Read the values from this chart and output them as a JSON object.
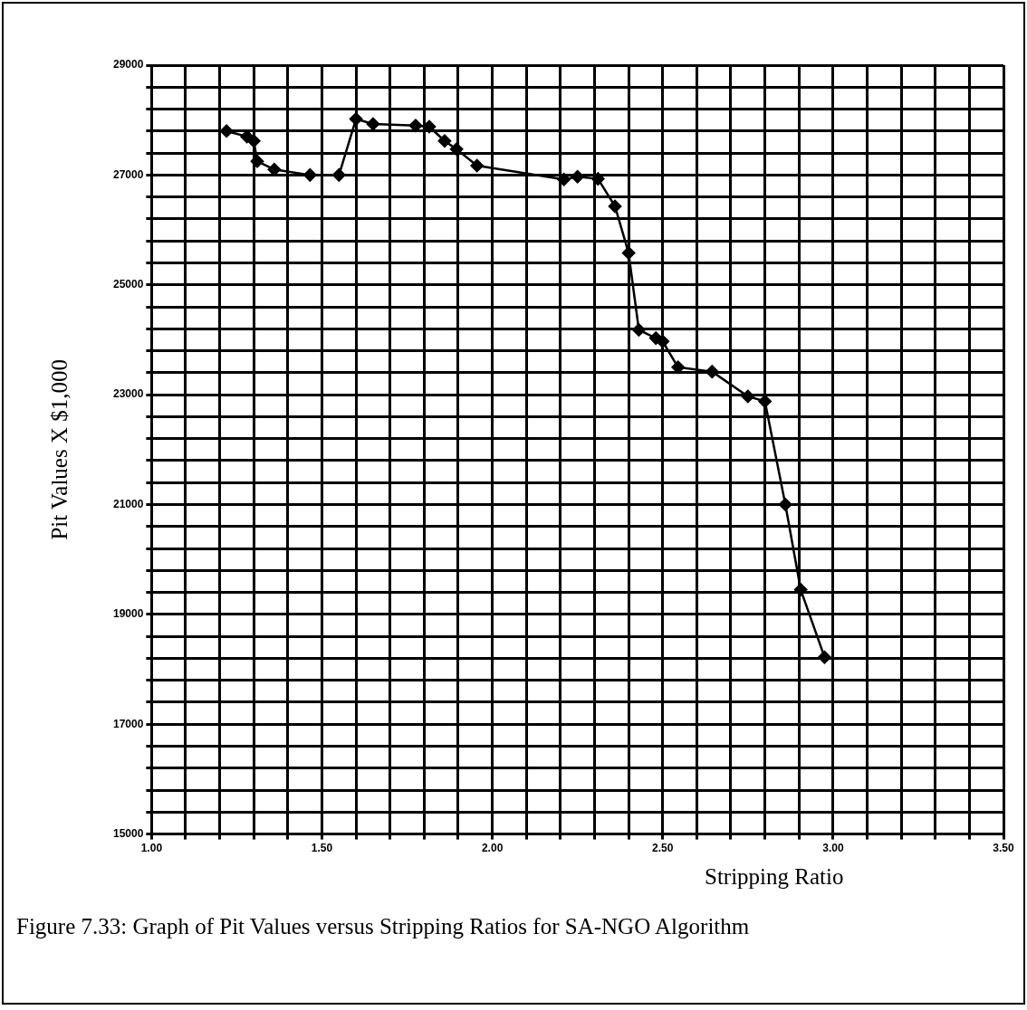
{
  "chart_data": {
    "type": "line",
    "xlabel": "Stripping Ratio",
    "ylabel": "Pit Values X $1,000",
    "annotations": [
      "Figure 7.33: Graph of Pit Values versus Stripping Ratios for SA-NGO Algorithm"
    ],
    "x": [
      1.22,
      1.28,
      1.3,
      1.31,
      1.36,
      1.465,
      1.55,
      1.6,
      1.65,
      1.775,
      1.815,
      1.86,
      1.895,
      1.955,
      2.21,
      2.25,
      2.31,
      2.36,
      2.4,
      2.43,
      2.48,
      2.5,
      2.545,
      2.645,
      2.75,
      2.8,
      2.86,
      2.905,
      2.975
    ],
    "series": [
      {
        "color": "#000000",
        "values": [
          27800,
          27700,
          27620,
          27250,
          27100,
          27000,
          27000,
          28020,
          27930,
          27900,
          27880,
          27620,
          27470,
          27170,
          26920,
          26970,
          26930,
          26430,
          25580,
          24180,
          24030,
          23970,
          23500,
          23420,
          22970,
          22880,
          21000,
          19450,
          18220
        ]
      }
    ],
    "xlim": [
      1.0,
      3.5
    ],
    "xticks": [
      {
        "value": 1.0,
        "label": "1.00"
      },
      {
        "value": 1.1,
        "label": null
      },
      {
        "value": 1.2,
        "label": null
      },
      {
        "value": 1.3,
        "label": null
      },
      {
        "value": 1.4,
        "label": null
      },
      {
        "value": 1.5,
        "label": "1.50"
      },
      {
        "value": 1.6,
        "label": null
      },
      {
        "value": 1.7,
        "label": null
      },
      {
        "value": 1.8,
        "label": null
      },
      {
        "value": 1.9,
        "label": null
      },
      {
        "value": 2.0,
        "label": "2.00"
      },
      {
        "value": 2.1,
        "label": null
      },
      {
        "value": 2.2,
        "label": null
      },
      {
        "value": 2.3,
        "label": null
      },
      {
        "value": 2.4,
        "label": null
      },
      {
        "value": 2.5,
        "label": "2.50"
      },
      {
        "value": 2.6,
        "label": null
      },
      {
        "value": 2.7,
        "label": null
      },
      {
        "value": 2.8,
        "label": null
      },
      {
        "value": 2.9,
        "label": null
      },
      {
        "value": 3.0,
        "label": "3.00"
      },
      {
        "value": 3.1,
        "label": null
      },
      {
        "value": 3.2,
        "label": null
      },
      {
        "value": 3.3,
        "label": null
      },
      {
        "value": 3.4,
        "label": null
      },
      {
        "value": 3.5,
        "label": "3.50"
      }
    ],
    "ylim": [
      15000,
      29000
    ],
    "yticks": [
      15000,
      {
        "value": 15400,
        "label": null
      },
      {
        "value": 15800,
        "label": null
      },
      {
        "value": 16200,
        "label": null
      },
      {
        "value": 16600,
        "label": null
      },
      17000,
      {
        "value": 17400,
        "label": null
      },
      {
        "value": 17800,
        "label": null
      },
      {
        "value": 18200,
        "label": null
      },
      {
        "value": 18600,
        "label": null
      },
      19000,
      {
        "value": 19400,
        "label": null
      },
      {
        "value": 19800,
        "label": null
      },
      {
        "value": 20200,
        "label": null
      },
      {
        "value": 20600,
        "label": null
      },
      21000,
      {
        "value": 21400,
        "label": null
      },
      {
        "value": 21800,
        "label": null
      },
      {
        "value": 22200,
        "label": null
      },
      {
        "value": 22600,
        "label": null
      },
      23000,
      {
        "value": 23400,
        "label": null
      },
      {
        "value": 23800,
        "label": null
      },
      {
        "value": 24200,
        "label": null
      },
      {
        "value": 24600,
        "label": null
      },
      25000,
      {
        "value": 25400,
        "label": null
      },
      {
        "value": 25800,
        "label": null
      },
      {
        "value": 26200,
        "label": null
      },
      {
        "value": 26600,
        "label": null
      },
      27000,
      {
        "value": 27400,
        "label": null
      },
      {
        "value": 27800,
        "label": null
      },
      {
        "value": 28200,
        "label": null
      },
      {
        "value": 28600,
        "label": null
      },
      29000
    ],
    "grid": true,
    "marker": "diamond",
    "line_style": "solid"
  }
}
